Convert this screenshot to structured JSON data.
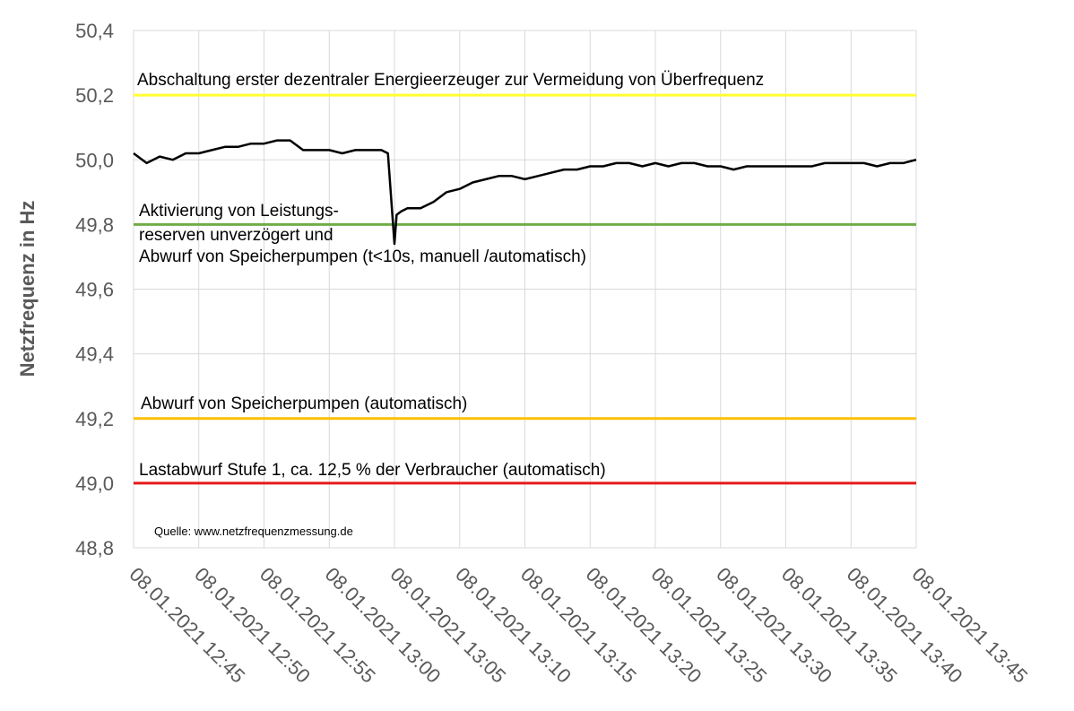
{
  "chart_data": {
    "type": "line",
    "ylabel": "Netzfrequenz in Hz",
    "xlabel": "",
    "ylim": [
      48.8,
      50.4
    ],
    "y_ticks": [
      "50,4",
      "50,2",
      "50,0",
      "49,8",
      "49,6",
      "49,4",
      "49,2",
      "49,0",
      "48,8"
    ],
    "y_tick_values": [
      50.4,
      50.2,
      50.0,
      49.8,
      49.6,
      49.4,
      49.2,
      49.0,
      48.8
    ],
    "x_ticks": [
      "08.01.2021 12:45",
      "08.01.2021 12:50",
      "08.01.2021 12:55",
      "08.01.2021 13:00",
      "08.01.2021 13:05",
      "08.01.2021 13:10",
      "08.01.2021 13:15",
      "08.01.2021 13:20",
      "08.01.2021 13:25",
      "08.01.2021 13:30",
      "08.01.2021 13:35",
      "08.01.2021 13:40",
      "08.01.2021 13:45"
    ],
    "grid": true,
    "series": [
      {
        "color": "#000000",
        "x": [
          "12:45",
          "12:46",
          "12:47",
          "12:48",
          "12:49",
          "12:50",
          "12:51",
          "12:52",
          "12:53",
          "12:54",
          "12:55",
          "12:56",
          "12:57",
          "12:58",
          "12:59",
          "13:00",
          "13:01",
          "13:02",
          "13:03",
          "13:04",
          "13:04:30",
          "13:05",
          "13:05:10",
          "13:05:30",
          "13:06",
          "13:07",
          "13:08",
          "13:09",
          "13:10",
          "13:11",
          "13:12",
          "13:13",
          "13:14",
          "13:15",
          "13:16",
          "13:17",
          "13:18",
          "13:19",
          "13:20",
          "13:21",
          "13:22",
          "13:23",
          "13:24",
          "13:25",
          "13:26",
          "13:27",
          "13:28",
          "13:29",
          "13:30",
          "13:31",
          "13:32",
          "13:33",
          "13:34",
          "13:35",
          "13:36",
          "13:37",
          "13:38",
          "13:39",
          "13:40",
          "13:41",
          "13:42",
          "13:43",
          "13:44",
          "13:45"
        ],
        "values": [
          50.02,
          49.99,
          50.01,
          50.0,
          50.02,
          50.02,
          50.03,
          50.04,
          50.04,
          50.05,
          50.05,
          50.06,
          50.06,
          50.03,
          50.03,
          50.03,
          50.02,
          50.03,
          50.03,
          50.03,
          50.02,
          49.74,
          49.83,
          49.84,
          49.85,
          49.85,
          49.87,
          49.9,
          49.91,
          49.93,
          49.94,
          49.95,
          49.95,
          49.94,
          49.95,
          49.96,
          49.97,
          49.97,
          49.98,
          49.98,
          49.99,
          49.99,
          49.98,
          49.99,
          49.98,
          49.99,
          49.99,
          49.98,
          49.98,
          49.97,
          49.98,
          49.98,
          49.98,
          49.98,
          49.98,
          49.98,
          49.99,
          49.99,
          49.99,
          49.99,
          49.98,
          49.99,
          49.99,
          50.0
        ]
      }
    ],
    "reference_lines": [
      {
        "value": 50.2,
        "color": "#ffff33",
        "label": "Abschaltung  erster dezentraler  Energieerzeuger  zur  Vermeidung  von Überfrequenz"
      },
      {
        "value": 49.8,
        "color": "#70ad47",
        "label_lines": [
          "Aktivierung  von Leistungs-",
          "reserven unverzögert  und",
          "Abwurf  von Speicherpumpen  (t<10s,  manuell  /automatisch)"
        ]
      },
      {
        "value": 49.2,
        "color": "#ffc000",
        "label": "Abwurf  von Speicherpumpen  (automatisch)"
      },
      {
        "value": 49.0,
        "color": "#e41a1c",
        "label": "Lastabwurf Stufe 1, ca. 12,5 % der Verbraucher  (automatisch)"
      }
    ],
    "source": "Quelle: www.netzfrequenzmessung.de"
  }
}
